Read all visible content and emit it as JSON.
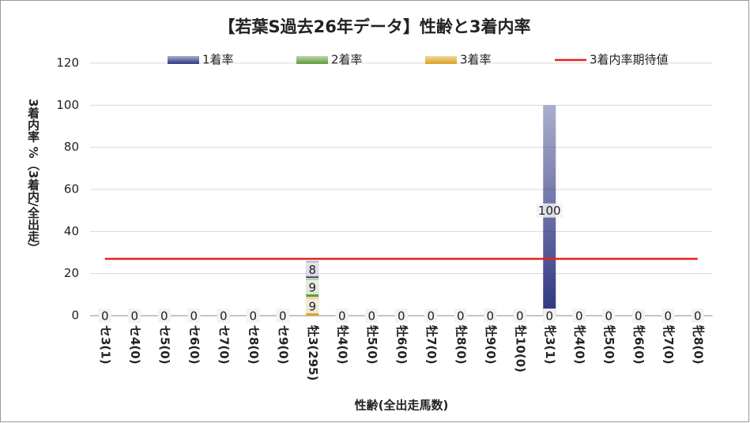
{
  "chart_data": {
    "type": "bar",
    "stacked": true,
    "title": "【若葉S過去26年データ】性齢と3着内率",
    "x_label": "性齢(全出走馬数)",
    "y_label": "3着内率 %（3着内/全出走）",
    "categories": [
      "セ3(1)",
      "セ4(0)",
      "セ5(0)",
      "セ6(0)",
      "セ7(0)",
      "セ8(0)",
      "セ9(0)",
      "牡3(295)",
      "牡4(0)",
      "牡5(0)",
      "牡6(0)",
      "牡7(0)",
      "牡8(0)",
      "牡9(0)",
      "牡10(0)",
      "牝3(1)",
      "牝4(0)",
      "牝5(0)",
      "牝6(0)",
      "牝7(0)",
      "牝8(0)"
    ],
    "series": [
      {
        "name": "1着率",
        "color": "#2e3580",
        "values": [
          0,
          0,
          0,
          0,
          0,
          0,
          0,
          8,
          0,
          0,
          0,
          0,
          0,
          0,
          0,
          100,
          0,
          0,
          0,
          0,
          0
        ]
      },
      {
        "name": "2着率",
        "color": "#5f9a3a",
        "values": [
          0,
          0,
          0,
          0,
          0,
          0,
          0,
          9,
          0,
          0,
          0,
          0,
          0,
          0,
          0,
          0,
          0,
          0,
          0,
          0,
          0
        ]
      },
      {
        "name": "3着率",
        "color": "#d9a21b",
        "values": [
          0,
          0,
          0,
          0,
          0,
          0,
          0,
          9,
          0,
          0,
          0,
          0,
          0,
          0,
          0,
          0,
          0,
          0,
          0,
          0,
          0
        ]
      },
      {
        "name": "3着内率期待値",
        "type": "line",
        "color": "#e8201c",
        "values": [
          27,
          27,
          27,
          27,
          27,
          27,
          27,
          27,
          27,
          27,
          27,
          27,
          27,
          27,
          27,
          27,
          27,
          27,
          27,
          27,
          27
        ]
      }
    ],
    "ylim": [
      0,
      120
    ],
    "yticks": [
      0,
      20,
      40,
      60,
      80,
      100,
      120
    ],
    "grid": true,
    "legend": "top"
  }
}
